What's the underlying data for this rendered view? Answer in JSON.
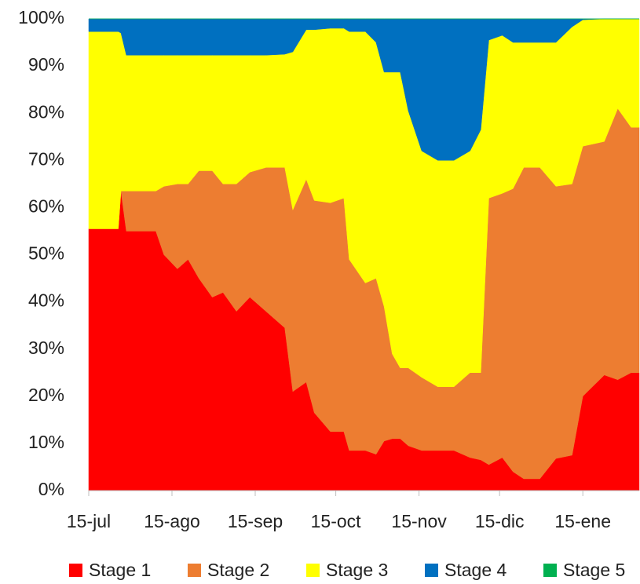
{
  "chart_data": {
    "type": "stacked_area",
    "x": [
      0,
      11,
      12,
      14,
      25,
      28,
      33,
      37,
      41,
      46,
      50,
      55,
      60,
      66,
      73,
      76,
      81,
      84,
      90,
      95,
      97,
      103,
      107,
      110,
      113,
      116,
      119,
      124,
      130,
      136,
      142,
      146,
      149,
      154,
      158,
      162,
      168,
      174,
      180,
      184,
      192,
      197,
      202,
      205
    ],
    "xlim": [
      0,
      205
    ],
    "xticks": [
      {
        "value": 0,
        "label": "15-jul"
      },
      {
        "value": 31,
        "label": "15-ago"
      },
      {
        "value": 62,
        "label": "15-sep"
      },
      {
        "value": 92,
        "label": "15-oct"
      },
      {
        "value": 123,
        "label": "15-nov"
      },
      {
        "value": 153,
        "label": "15-dic"
      },
      {
        "value": 184,
        "label": "15-ene"
      }
    ],
    "ylim": [
      0,
      100
    ],
    "yticks": [
      {
        "value": 0,
        "label": "0%"
      },
      {
        "value": 10,
        "label": "10%"
      },
      {
        "value": 20,
        "label": "20%"
      },
      {
        "value": 30,
        "label": "30%"
      },
      {
        "value": 40,
        "label": "40%"
      },
      {
        "value": 50,
        "label": "50%"
      },
      {
        "value": 60,
        "label": "60%"
      },
      {
        "value": 70,
        "label": "70%"
      },
      {
        "value": 80,
        "label": "80%"
      },
      {
        "value": 90,
        "label": "90%"
      },
      {
        "value": 100,
        "label": "100%"
      }
    ],
    "legend": "bottom",
    "series": [
      {
        "name": "Stage 1",
        "color": "#ff0000",
        "values": [
          55.5,
          55.5,
          63.5,
          55,
          55,
          50,
          47,
          49,
          45,
          41,
          42,
          38,
          41,
          38,
          34.5,
          21,
          23,
          16.5,
          12.5,
          12.5,
          8.5,
          8.5,
          7.7,
          10.5,
          11,
          11,
          9.5,
          8.5,
          8.5,
          8.5,
          7,
          6.5,
          5.5,
          7,
          4,
          2.5,
          2.5,
          6.8,
          7.5,
          20,
          24.5,
          23.5,
          25,
          25
        ]
      },
      {
        "name": "Stage 2",
        "color": "#ed7d31",
        "values": [
          0,
          0,
          0,
          8.5,
          8.5,
          14.5,
          18,
          16,
          22.8,
          26.8,
          23,
          27,
          26.5,
          30.5,
          34,
          38.5,
          43,
          45,
          48.5,
          49.5,
          40.5,
          35.5,
          37.3,
          28.5,
          18,
          15,
          16.5,
          15.5,
          13.5,
          13.5,
          18,
          18.5,
          56.5,
          56,
          60,
          66,
          66,
          57.7,
          57.5,
          53,
          49.5,
          57.5,
          52,
          52
        ]
      },
      {
        "name": "Stage 3",
        "color": "#ffff00",
        "values": [
          41.8,
          41.8,
          33.5,
          28.8,
          28.8,
          27.8,
          27.3,
          27.3,
          24.5,
          24.5,
          27.3,
          27.3,
          24.8,
          23.8,
          24,
          33.5,
          31.7,
          36.2,
          37,
          36,
          48.3,
          53.3,
          50,
          49.7,
          59.7,
          62.7,
          54.5,
          48,
          48,
          48,
          47,
          51.5,
          33.5,
          33.5,
          31,
          26.5,
          26.5,
          30.5,
          33.3,
          26.8,
          26,
          19,
          23,
          23
        ]
      },
      {
        "name": "Stage 4",
        "color": "#0070c0",
        "values": [
          2.7,
          2.7,
          3,
          7.7,
          7.7,
          7.7,
          7.7,
          7.7,
          7.7,
          7.7,
          7.7,
          7.7,
          7.7,
          7.7,
          7.5,
          7,
          2.3,
          2.3,
          2,
          2,
          2.7,
          2.7,
          5,
          11.3,
          11.3,
          11.3,
          19.5,
          28,
          30,
          30,
          28,
          23.5,
          4.5,
          3.5,
          5,
          5,
          5,
          5,
          1.7,
          0.2,
          0,
          0,
          0,
          0
        ]
      },
      {
        "name": "Stage 5",
        "color": "#00b050",
        "values": [
          0,
          0,
          0,
          0,
          0,
          0,
          0,
          0,
          0,
          0,
          0,
          0,
          0,
          0,
          0,
          0,
          0,
          0,
          0,
          0,
          0,
          0,
          0,
          0,
          0,
          0,
          0,
          0,
          0,
          0,
          0,
          0,
          0,
          0,
          0,
          0,
          0,
          0,
          0,
          0,
          0,
          0,
          0,
          0
        ]
      }
    ]
  }
}
